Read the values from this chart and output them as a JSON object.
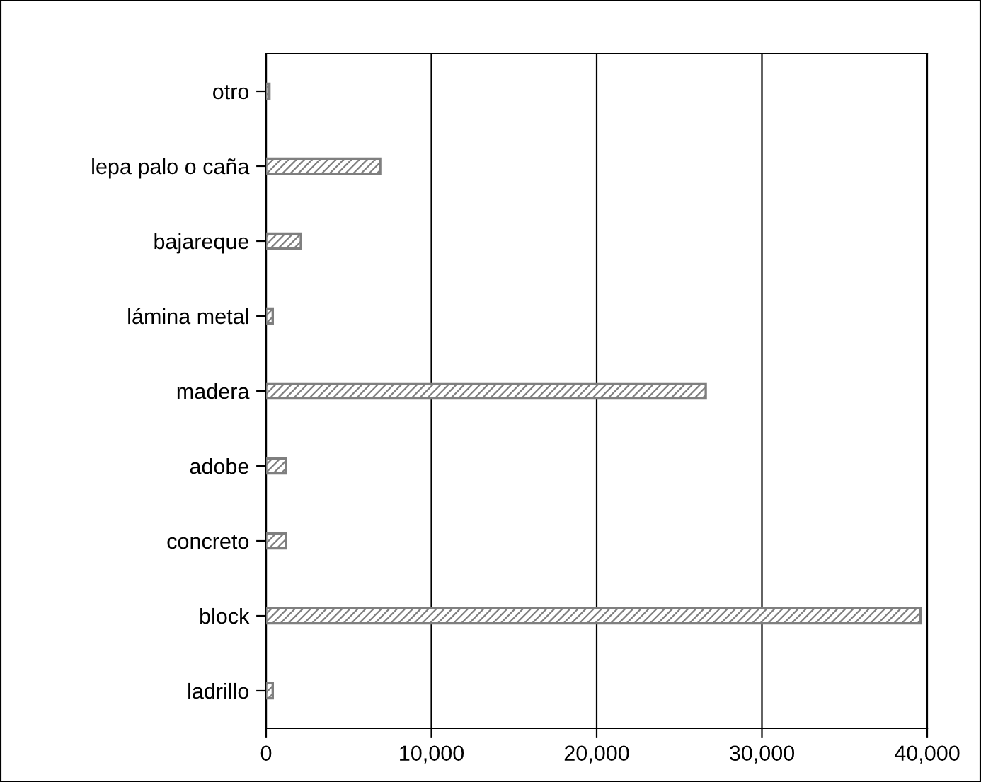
{
  "chart_data": {
    "type": "bar",
    "orientation": "horizontal",
    "categories": [
      "otro",
      "lepa palo o caña",
      "bajareque",
      "lámina metal",
      "madera",
      "adobe",
      "concreto",
      "block",
      "ladrillo"
    ],
    "values": [
      200,
      6900,
      2100,
      400,
      26600,
      1200,
      1200,
      39600,
      400
    ],
    "color": "#7f7f7f",
    "xlim": [
      0,
      40000
    ],
    "xticks": [
      {
        "value": 0,
        "label": "0"
      },
      {
        "value": 10000,
        "label": "10,000"
      },
      {
        "value": 20000,
        "label": "20,000"
      },
      {
        "value": 30000,
        "label": "30,000"
      },
      {
        "value": 40000,
        "label": "40,000"
      }
    ],
    "grid": "x",
    "legend": false
  }
}
